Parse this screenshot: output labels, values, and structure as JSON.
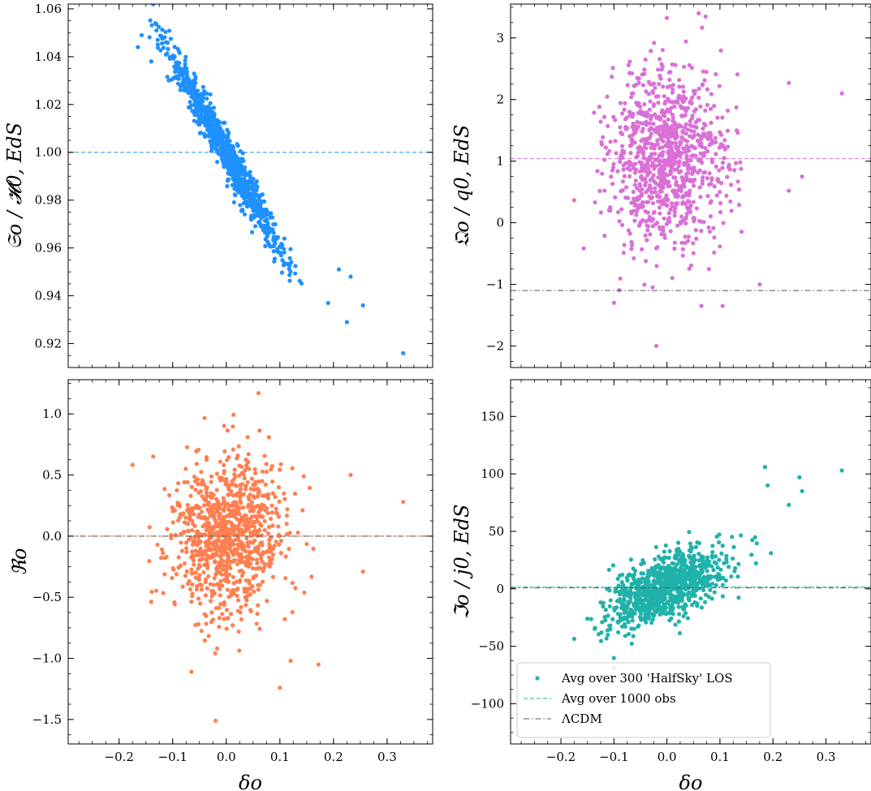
{
  "figure": {
    "colors": {
      "panel_a": "#1e90ff",
      "panel_b": "#da70d6",
      "panel_c": "#ff7f50",
      "panel_d": "#20b2aa",
      "lcdm": "#555555"
    }
  },
  "chart_data": [
    {
      "id": "a",
      "type": "scatter",
      "xlabel": "δo",
      "ylabel": "𝔖o / 𝓗0, EdS",
      "xlim": [
        -0.295,
        0.385
      ],
      "ylim": [
        0.91,
        1.062
      ],
      "yticks": [
        0.92,
        0.94,
        0.96,
        0.98,
        1.0,
        1.02,
        1.04,
        1.06
      ],
      "ytick_labels": [
        "0.92",
        "0.94",
        "0.96",
        "0.98",
        "1.00",
        "1.02",
        "1.04",
        "1.06"
      ],
      "xticks": [
        -0.2,
        -0.1,
        0.0,
        0.1,
        0.2,
        0.3
      ],
      "xtick_labels": [
        "",
        "",
        "",
        "",
        "",
        ""
      ],
      "show_xlabel": false,
      "color": "panel_a",
      "cloud": {
        "n": 950,
        "mean_x": 0.0,
        "sd_x": 0.055,
        "slope": -0.4,
        "intercept": 1.0,
        "sd_resid": 0.0045
      },
      "extra_points": [
        [
          0.33,
          0.916
        ],
        [
          0.255,
          0.936
        ],
        [
          0.232,
          0.948
        ],
        [
          0.225,
          0.929
        ],
        [
          0.19,
          0.937
        ],
        [
          0.21,
          0.951
        ],
        [
          -0.165,
          1.044
        ],
        [
          -0.158,
          1.049
        ],
        [
          -0.128,
          1.047
        ],
        [
          -0.14,
          1.038
        ]
      ],
      "hlines": [
        {
          "y": 1.0,
          "style": "dashed",
          "color": "panel_a"
        }
      ],
      "legend": null
    },
    {
      "id": "b",
      "type": "scatter",
      "xlabel": "δo",
      "ylabel": "𝔔o / q0, EdS",
      "xlim": [
        -0.295,
        0.385
      ],
      "ylim": [
        -2.35,
        3.55
      ],
      "yticks": [
        -2,
        -1,
        0,
        1,
        2,
        3
      ],
      "ytick_labels": [
        "−2",
        "−1",
        "0",
        "1",
        "2",
        "3"
      ],
      "xticks": [
        -0.2,
        -0.1,
        0.0,
        0.1,
        0.2,
        0.3
      ],
      "xtick_labels": [
        "",
        "",
        "",
        "",
        "",
        ""
      ],
      "show_xlabel": false,
      "color": "panel_b",
      "cloud": {
        "n": 950,
        "mean_x": 0.0,
        "sd_x": 0.055,
        "slope": 0.0,
        "intercept": 1.02,
        "sd_resid": 0.72
      },
      "extra_points": [
        [
          0.33,
          2.1
        ],
        [
          0.06,
          3.4
        ],
        [
          0.23,
          2.27
        ],
        [
          -0.02,
          -2.0
        ],
        [
          -0.1,
          -1.3
        ],
        [
          0.065,
          -1.35
        ],
        [
          0.105,
          -1.35
        ],
        [
          0.175,
          -1.0
        ],
        [
          0.255,
          0.75
        ],
        [
          0.23,
          0.52
        ]
      ],
      "hlines": [
        {
          "y": 1.04,
          "style": "dashed",
          "color": "panel_b"
        },
        {
          "y": -1.1,
          "style": "dashdot",
          "color": "lcdm"
        }
      ],
      "legend": null
    },
    {
      "id": "c",
      "type": "scatter",
      "xlabel": "δo",
      "ylabel": "ℜo",
      "xlim": [
        -0.295,
        0.385
      ],
      "ylim": [
        -1.7,
        1.28
      ],
      "yticks": [
        -1.5,
        -1.0,
        -0.5,
        0.0,
        0.5,
        1.0
      ],
      "ytick_labels": [
        "−1.5",
        "−1.0",
        "−0.5",
        "0.0",
        "0.5",
        "1.0"
      ],
      "xticks": [
        -0.2,
        -0.1,
        0.0,
        0.1,
        0.2,
        0.3
      ],
      "xtick_labels": [
        "−0.2",
        "−0.1",
        "0.0",
        "0.1",
        "0.2",
        "0.3"
      ],
      "show_xlabel": true,
      "color": "panel_c",
      "cloud": {
        "n": 950,
        "mean_x": 0.0,
        "sd_x": 0.055,
        "slope": 0.0,
        "intercept": 0.0,
        "sd_resid": 0.33
      },
      "extra_points": [
        [
          0.33,
          0.28
        ],
        [
          -0.02,
          -1.51
        ],
        [
          0.06,
          1.17
        ],
        [
          0.1,
          -1.24
        ],
        [
          -0.065,
          -1.11
        ],
        [
          0.172,
          -1.05
        ],
        [
          0.12,
          -1.02
        ],
        [
          0.255,
          -0.29
        ],
        [
          0.232,
          0.5
        ]
      ],
      "hlines": [
        {
          "y": 0.0,
          "style": "dashed",
          "color": "panel_c"
        },
        {
          "y": 0.0,
          "style": "dashdot",
          "color": "lcdm"
        }
      ],
      "legend": null
    },
    {
      "id": "d",
      "type": "scatter",
      "xlabel": "δo",
      "ylabel": "ℑo / j0, EdS",
      "xlim": [
        -0.295,
        0.385
      ],
      "ylim": [
        -135,
        182
      ],
      "yticks": [
        -100,
        -50,
        0,
        50,
        100,
        150
      ],
      "ytick_labels": [
        "−100",
        "−50",
        "0",
        "50",
        "100",
        "150"
      ],
      "xticks": [
        -0.2,
        -0.1,
        0.0,
        0.1,
        0.2,
        0.3
      ],
      "xtick_labels": [
        "−0.2",
        "−0.1",
        "0.0",
        "0.1",
        "0.2",
        "0.3"
      ],
      "show_xlabel": true,
      "color": "panel_d",
      "cloud": {
        "n": 950,
        "mean_x": 0.0,
        "sd_x": 0.055,
        "slope": 180,
        "intercept": 1.5,
        "sd_resid": 14
      },
      "extra_points": [
        [
          0.33,
          103
        ],
        [
          0.185,
          106
        ],
        [
          0.25,
          97
        ],
        [
          0.255,
          85
        ],
        [
          0.19,
          90
        ],
        [
          0.23,
          73
        ],
        [
          -0.1,
          -69
        ]
      ],
      "hlines": [
        {
          "y": 1.5,
          "style": "dashed",
          "color": "panel_d"
        },
        {
          "y": 0.8,
          "style": "dashdot",
          "color": "lcdm"
        }
      ],
      "legend": {
        "position": "lower-left",
        "entries": [
          {
            "label": "Avg over 300 'HalfSky' LOS",
            "kind": "marker",
            "color": "panel_d"
          },
          {
            "label": "Avg over 1000 obs",
            "kind": "dashed",
            "color": "panel_d"
          },
          {
            "label": "ΛCDM",
            "kind": "dashdot",
            "color": "lcdm"
          }
        ]
      }
    }
  ]
}
